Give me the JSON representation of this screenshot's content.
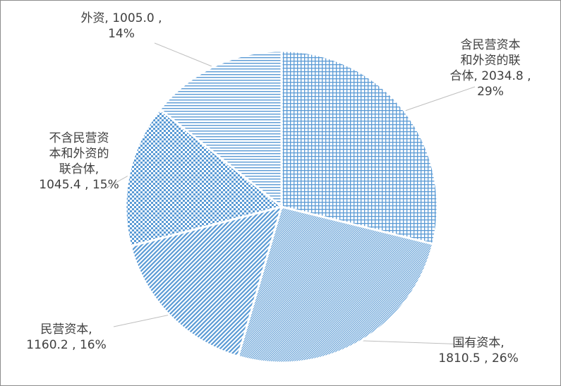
{
  "chart_data": {
    "type": "pie",
    "title": "",
    "legend": "none",
    "slices": [
      {
        "label": "含民营资本和外资的联合体",
        "value": 2034.8,
        "percent": "29%",
        "pattern": "grid"
      },
      {
        "label": "国有资本",
        "value": 1810.5,
        "percent": "26%",
        "pattern": "diagonal-fine"
      },
      {
        "label": "民营资本",
        "value": 1160.2,
        "percent": "16%",
        "pattern": "diagonal-wide"
      },
      {
        "label": "不含民营资本和外资的联合体",
        "value": 1045.4,
        "percent": "15%",
        "pattern": "checker"
      },
      {
        "label": "外资",
        "value": 1005.0,
        "percent": "14%",
        "pattern": "horizontal-lines"
      }
    ],
    "data_labels": [
      "含民营资本\n和外资的联\n合体, 2034.8 ,\n29%",
      "国有资本,\n1810.5 , 26%",
      "民营资本,\n1160.2 , 16%",
      "不含民营资\n本和外资的\n联合体,\n1045.4 , 15%",
      "外资, 1005.0 ,\n14%"
    ],
    "colors": {
      "series": "#5b9bd5",
      "slice_border": "#ffffff",
      "leader_line": "#bfbfbf",
      "label_text": "#404040"
    }
  }
}
